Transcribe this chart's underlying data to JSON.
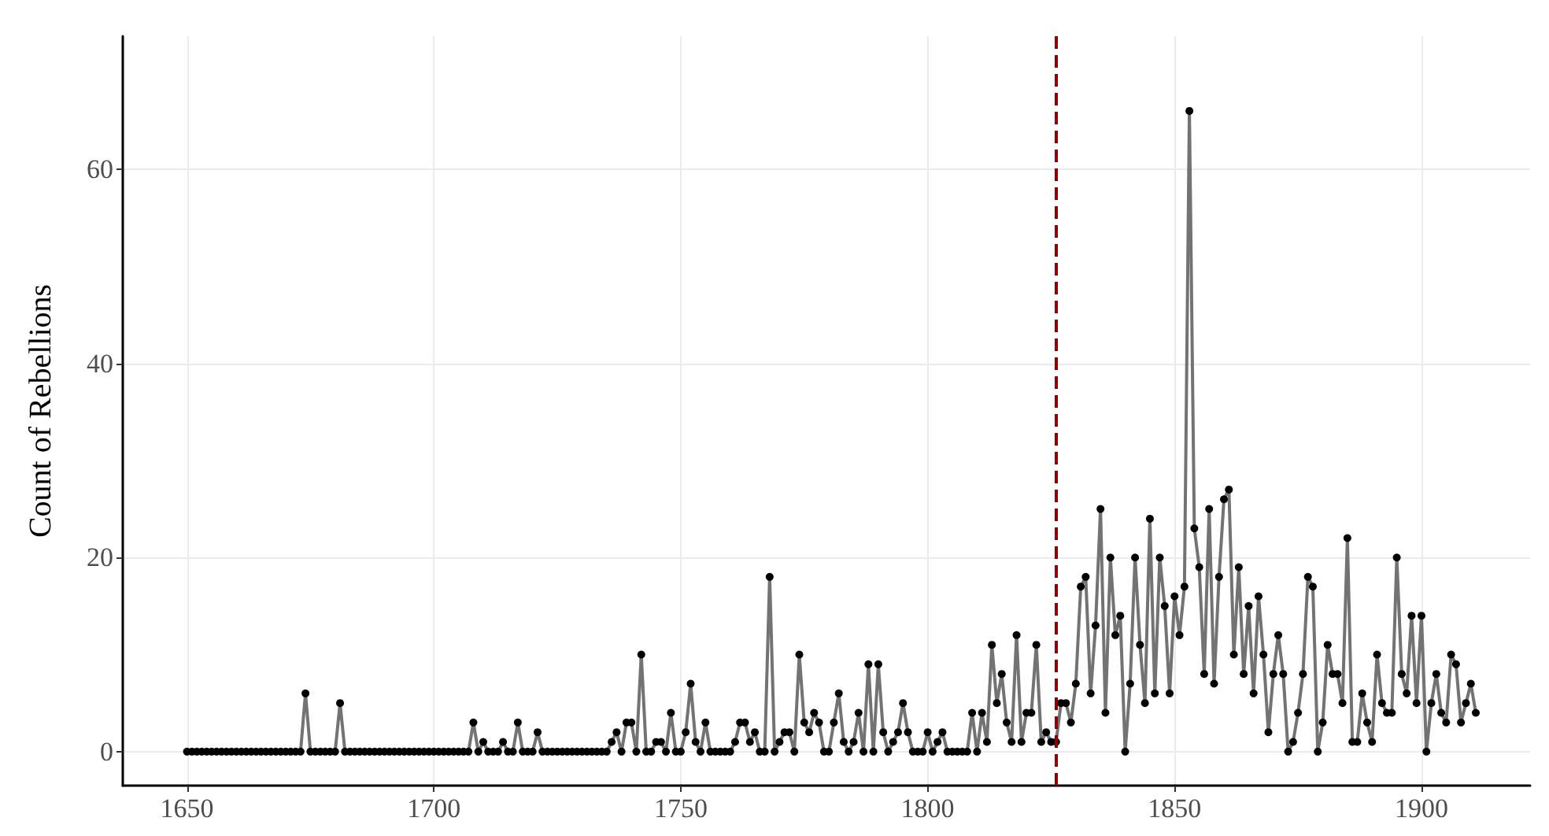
{
  "chart_data": {
    "type": "line",
    "ylabel": "Count of Rebellions",
    "x": [
      1650,
      1651,
      1652,
      1653,
      1654,
      1655,
      1656,
      1657,
      1658,
      1659,
      1660,
      1661,
      1662,
      1663,
      1664,
      1665,
      1666,
      1667,
      1668,
      1669,
      1670,
      1671,
      1672,
      1673,
      1674,
      1675,
      1676,
      1677,
      1678,
      1679,
      1680,
      1681,
      1682,
      1683,
      1684,
      1685,
      1686,
      1687,
      1688,
      1689,
      1690,
      1691,
      1692,
      1693,
      1694,
      1695,
      1696,
      1697,
      1698,
      1699,
      1700,
      1701,
      1702,
      1703,
      1704,
      1705,
      1706,
      1707,
      1708,
      1709,
      1710,
      1711,
      1712,
      1713,
      1714,
      1715,
      1716,
      1717,
      1718,
      1719,
      1720,
      1721,
      1722,
      1723,
      1724,
      1725,
      1726,
      1727,
      1728,
      1729,
      1730,
      1731,
      1732,
      1733,
      1734,
      1735,
      1736,
      1737,
      1738,
      1739,
      1740,
      1741,
      1742,
      1743,
      1744,
      1745,
      1746,
      1747,
      1748,
      1749,
      1750,
      1751,
      1752,
      1753,
      1754,
      1755,
      1756,
      1757,
      1758,
      1759,
      1760,
      1761,
      1762,
      1763,
      1764,
      1765,
      1766,
      1767,
      1768,
      1769,
      1770,
      1771,
      1772,
      1773,
      1774,
      1775,
      1776,
      1777,
      1778,
      1779,
      1780,
      1781,
      1782,
      1783,
      1784,
      1785,
      1786,
      1787,
      1788,
      1789,
      1790,
      1791,
      1792,
      1793,
      1794,
      1795,
      1796,
      1797,
      1798,
      1799,
      1800,
      1801,
      1802,
      1803,
      1804,
      1805,
      1806,
      1807,
      1808,
      1809,
      1810,
      1811,
      1812,
      1813,
      1814,
      1815,
      1816,
      1817,
      1818,
      1819,
      1820,
      1821,
      1822,
      1823,
      1824,
      1825,
      1826,
      1827,
      1828,
      1829,
      1830,
      1831,
      1832,
      1833,
      1834,
      1835,
      1836,
      1837,
      1838,
      1839,
      1840,
      1841,
      1842,
      1843,
      1844,
      1845,
      1846,
      1847,
      1848,
      1849,
      1850,
      1851,
      1852,
      1853,
      1854,
      1855,
      1856,
      1857,
      1858,
      1859,
      1860,
      1861,
      1862,
      1863,
      1864,
      1865,
      1866,
      1867,
      1868,
      1869,
      1870,
      1871,
      1872,
      1873,
      1874,
      1875,
      1876,
      1877,
      1878,
      1879,
      1880,
      1881,
      1882,
      1883,
      1884,
      1885,
      1886,
      1887,
      1888,
      1889,
      1890,
      1891,
      1892,
      1893,
      1894,
      1895,
      1896,
      1897,
      1898,
      1899,
      1900,
      1901,
      1902,
      1903,
      1904,
      1905,
      1906,
      1907,
      1908,
      1909,
      1910,
      1911
    ],
    "series": [
      {
        "color": "#737373",
        "values": [
          0,
          0,
          0,
          0,
          0,
          0,
          0,
          0,
          0,
          0,
          0,
          0,
          0,
          0,
          0,
          0,
          0,
          0,
          0,
          0,
          0,
          0,
          0,
          0,
          6,
          0,
          0,
          0,
          0,
          0,
          0,
          5,
          0,
          0,
          0,
          0,
          0,
          0,
          0,
          0,
          0,
          0,
          0,
          0,
          0,
          0,
          0,
          0,
          0,
          0,
          0,
          0,
          0,
          0,
          0,
          0,
          0,
          0,
          3,
          0,
          1,
          0,
          0,
          0,
          1,
          0,
          0,
          3,
          0,
          0,
          0,
          2,
          0,
          0,
          0,
          0,
          0,
          0,
          0,
          0,
          0,
          0,
          0,
          0,
          0,
          0,
          1,
          2,
          0,
          3,
          3,
          0,
          10,
          0,
          0,
          1,
          1,
          0,
          4,
          0,
          0,
          2,
          7,
          1,
          0,
          3,
          0,
          0,
          0,
          0,
          0,
          1,
          3,
          3,
          1,
          2,
          0,
          0,
          18,
          0,
          1,
          2,
          2,
          0,
          10,
          3,
          2,
          4,
          3,
          0,
          0,
          3,
          6,
          1,
          0,
          1,
          4,
          0,
          9,
          0,
          9,
          2,
          0,
          1,
          2,
          5,
          2,
          0,
          0,
          0,
          2,
          0,
          1,
          2,
          0,
          0,
          0,
          0,
          0,
          4,
          0,
          4,
          1,
          11,
          5,
          8,
          3,
          1,
          12,
          1,
          4,
          4,
          11,
          1,
          2,
          1,
          1,
          5,
          5,
          3,
          7,
          17,
          18,
          6,
          13,
          25,
          4,
          20,
          12,
          14,
          0,
          7,
          20,
          11,
          5,
          24,
          6,
          20,
          15,
          6,
          16,
          12,
          17,
          66,
          23,
          19,
          8,
          25,
          7,
          18,
          26,
          27,
          10,
          19,
          8,
          15,
          6,
          16,
          10,
          2,
          8,
          12,
          8,
          0,
          1,
          4,
          8,
          18,
          17,
          0,
          3,
          11,
          8,
          8,
          5,
          22,
          1,
          1,
          6,
          3,
          1,
          10,
          5,
          4,
          4,
          20,
          8,
          6,
          14,
          5,
          14,
          0,
          5,
          8,
          4,
          3,
          10,
          9,
          3,
          5,
          7,
          4
        ]
      }
    ],
    "xlim": [
      1637,
      1922
    ],
    "xticks": [
      1650,
      1700,
      1750,
      1800,
      1850,
      1900
    ],
    "ylim": [
      -3.5,
      73.7
    ],
    "yticks": [
      0,
      20,
      40,
      60
    ],
    "grid": true,
    "marker": "circle",
    "line_style": "solid",
    "ref_lines": [
      {
        "axis": "x",
        "value": 1826,
        "color": "#8b0000",
        "line_style": "dashed"
      }
    ]
  }
}
